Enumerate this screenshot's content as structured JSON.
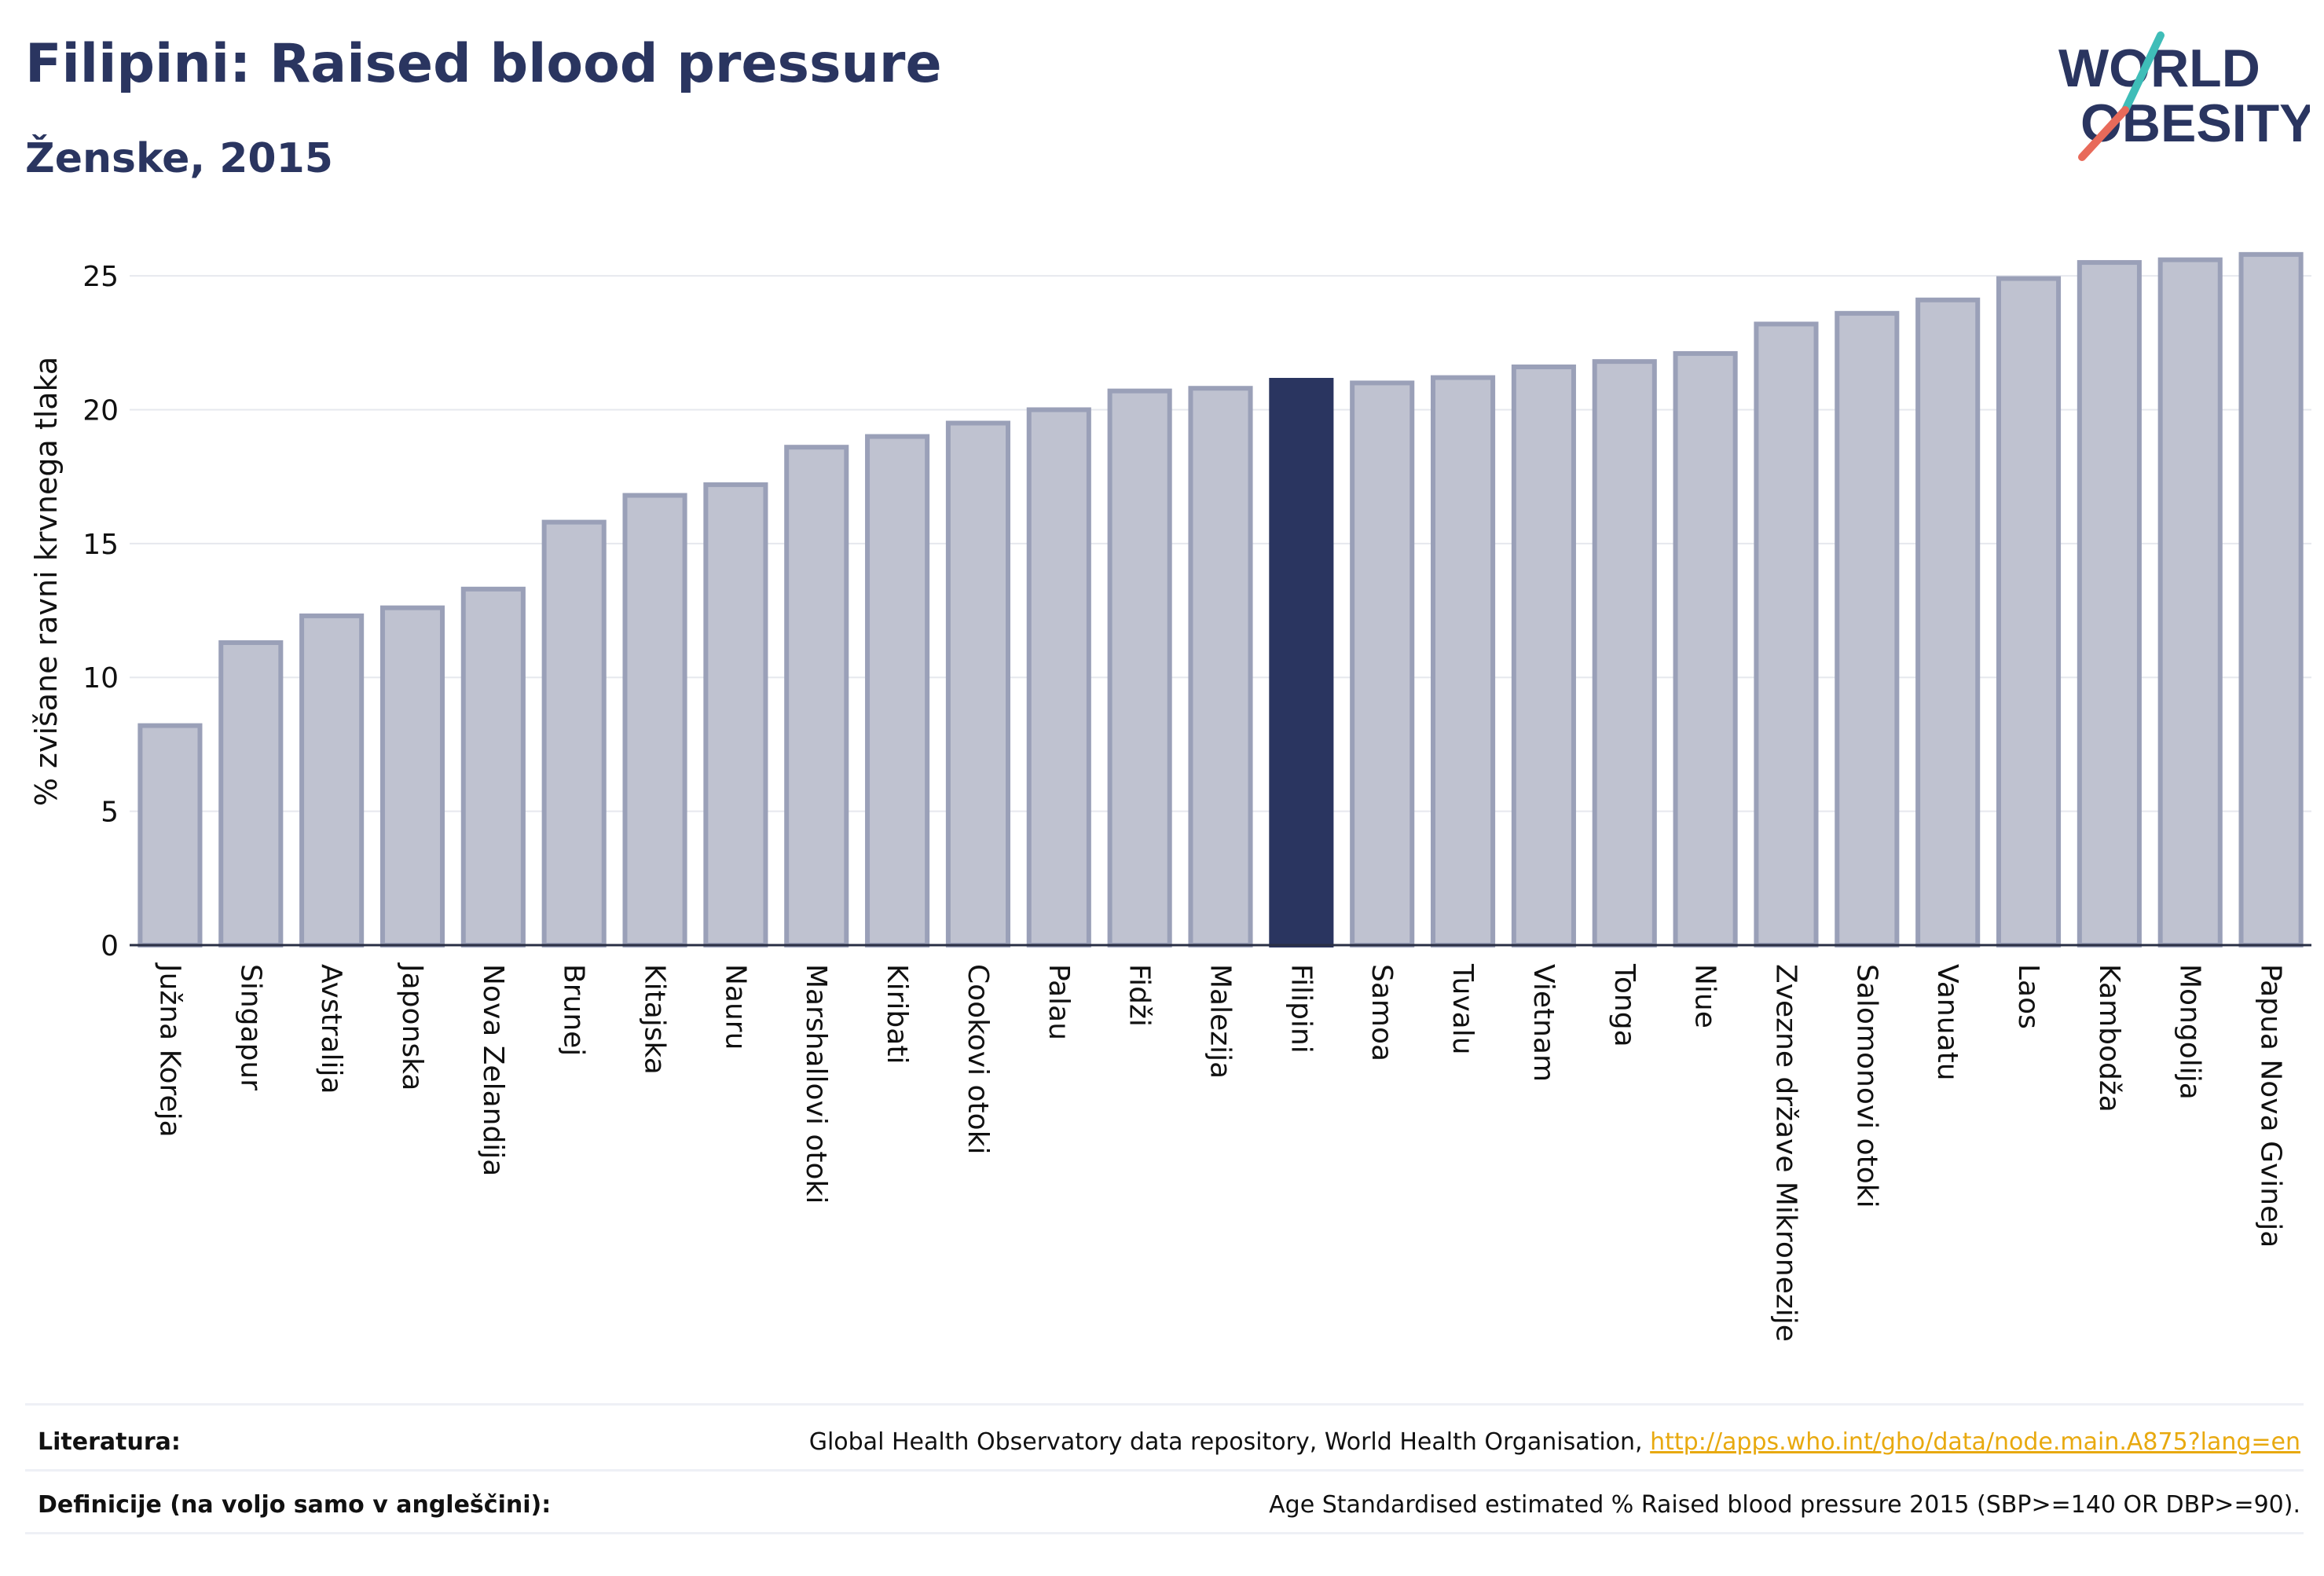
{
  "header": {
    "title": "Filipini: Raised blood pressure",
    "subtitle": "Ženske, 2015",
    "logo_line1": "WORLD",
    "logo_line2": "OBESITY"
  },
  "chart_data": {
    "type": "bar",
    "ylabel": "% zvišane ravni krvnega tlaka",
    "xlabel": "",
    "ylim": [
      0,
      26.5
    ],
    "yticks": [
      0,
      5,
      10,
      15,
      20,
      25
    ],
    "grid": true,
    "highlight": "Filipini",
    "colors": {
      "bar": "#bfc2d0",
      "bar_edge": "#9aa0b8",
      "highlight": "#2a3560",
      "grid": "#e6e8ee",
      "axis": "#2a2f45"
    },
    "categories": [
      "Južna Koreja",
      "Singapur",
      "Avstralija",
      "Japonska",
      "Nova Zelandija",
      "Brunej",
      "Kitajska",
      "Nauru",
      "Marshallovi otoki",
      "Kiribati",
      "Cookovi otoki",
      "Palau",
      "Fidži",
      "Malezija",
      "Filipini",
      "Samoa",
      "Tuvalu",
      "Vietnam",
      "Tonga",
      "Niue",
      "Zvezne države Mikronezije",
      "Salomonovi otoki",
      "Vanuatu",
      "Laos",
      "Kambodža",
      "Mongolija",
      "Papua Nova Gvineja"
    ],
    "values": [
      8.2,
      11.3,
      12.3,
      12.6,
      13.3,
      15.8,
      16.8,
      17.2,
      18.6,
      19.0,
      19.5,
      20.0,
      20.7,
      20.8,
      21.1,
      21.0,
      21.2,
      21.6,
      21.8,
      22.1,
      23.2,
      23.6,
      24.1,
      24.9,
      25.5,
      25.6,
      25.8
    ]
  },
  "footer": {
    "literature_label": "Literatura:",
    "literature_text": "Global Health Observatory data repository, World Health Organisation,",
    "literature_link": "http://apps.who.int/gho/data/node.main.A875?lang=en",
    "definitions_label": "Definicije (na voljo samo v angleščini):",
    "definitions_text": "Age Standardised estimated % Raised blood pressure 2015 (SBP>=140 OR DBP>=90)."
  }
}
